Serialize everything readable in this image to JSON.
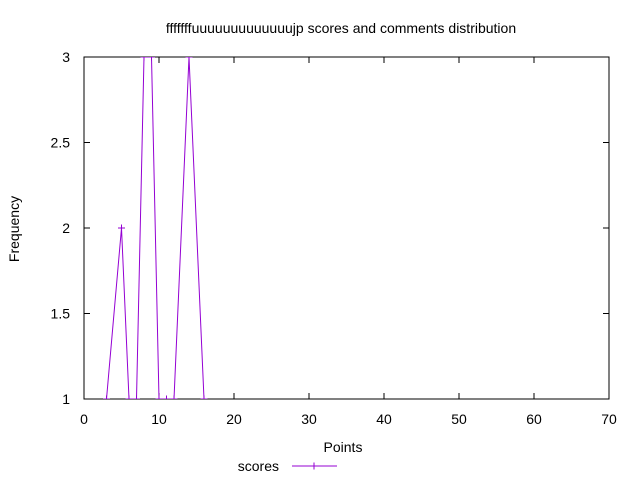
{
  "chart_data": {
    "type": "line",
    "title": "fffffffuuuuuuuuuuuuujp scores and comments distribution",
    "xlabel": "Points",
    "ylabel": "Frequency",
    "xlim": [
      0,
      70
    ],
    "ylim": [
      1,
      3
    ],
    "x_ticks": [
      0,
      10,
      20,
      30,
      40,
      50,
      60,
      70
    ],
    "y_ticks": [
      1,
      1.5,
      2,
      2.5,
      3
    ],
    "x_tick_labels": [
      "0",
      "10",
      "20",
      "30",
      "40",
      "50",
      "60",
      "70"
    ],
    "y_tick_labels": [
      "1",
      "1.5",
      "2",
      "2.5",
      "3"
    ],
    "grid": false,
    "legend_position": "bottom",
    "series": [
      {
        "name": "scores",
        "color": "#9400d3",
        "marker": "plus",
        "points": [
          {
            "x": 3,
            "y": 1
          },
          {
            "x": 5,
            "y": 2
          },
          {
            "x": 6,
            "y": 1
          },
          {
            "x": 7,
            "y": 1
          },
          {
            "x": 8,
            "y": 3
          },
          {
            "x": 9,
            "y": 3
          },
          {
            "x": 10,
            "y": 1
          },
          {
            "x": 11,
            "y": 1
          },
          {
            "x": 12,
            "y": 1
          },
          {
            "x": 14,
            "y": 3
          },
          {
            "x": 16,
            "y": 1
          }
        ]
      }
    ]
  }
}
